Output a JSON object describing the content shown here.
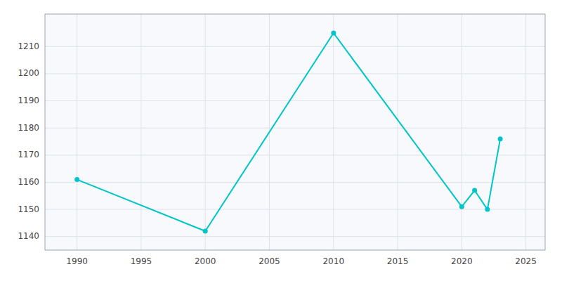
{
  "chart_data": {
    "type": "line",
    "x": [
      1990,
      2000,
      2010,
      2020,
      2021,
      2022,
      2023
    ],
    "values": [
      1161,
      1142,
      1215,
      1151,
      1157,
      1150,
      1176
    ],
    "color": "#00C5C8",
    "marker": "circle",
    "xlim": [
      1987.5,
      2026.5
    ],
    "ylim": [
      1135,
      1222
    ],
    "xticks": [
      1990,
      1995,
      2000,
      2005,
      2010,
      2015,
      2020,
      2025
    ],
    "yticks": [
      1140,
      1150,
      1160,
      1170,
      1180,
      1190,
      1200,
      1210
    ],
    "grid": true
  }
}
